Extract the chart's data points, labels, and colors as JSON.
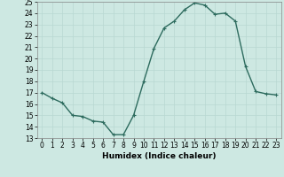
{
  "x": [
    0,
    1,
    2,
    3,
    4,
    5,
    6,
    7,
    8,
    9,
    10,
    11,
    12,
    13,
    14,
    15,
    16,
    17,
    18,
    19,
    20,
    21,
    22,
    23
  ],
  "y": [
    17.0,
    16.5,
    16.1,
    15.0,
    14.9,
    14.5,
    14.4,
    13.3,
    13.3,
    15.0,
    18.0,
    20.9,
    22.7,
    23.3,
    24.3,
    24.9,
    24.7,
    23.9,
    24.0,
    23.3,
    19.3,
    17.1,
    16.9,
    16.8
  ],
  "line_color": "#2d6b5e",
  "marker": "+",
  "marker_size": 3,
  "bg_color": "#cde8e2",
  "grid_color": "#b8d8d2",
  "xlabel": "Humidex (Indice chaleur)",
  "ylim": [
    13,
    25
  ],
  "xlim": [
    -0.5,
    23.5
  ],
  "yticks": [
    13,
    14,
    15,
    16,
    17,
    18,
    19,
    20,
    21,
    22,
    23,
    24,
    25
  ],
  "xticks": [
    0,
    1,
    2,
    3,
    4,
    5,
    6,
    7,
    8,
    9,
    10,
    11,
    12,
    13,
    14,
    15,
    16,
    17,
    18,
    19,
    20,
    21,
    22,
    23
  ],
  "tick_fontsize": 5.5,
  "xlabel_fontsize": 6.5,
  "linewidth": 1.0,
  "marker_edge_width": 0.8
}
